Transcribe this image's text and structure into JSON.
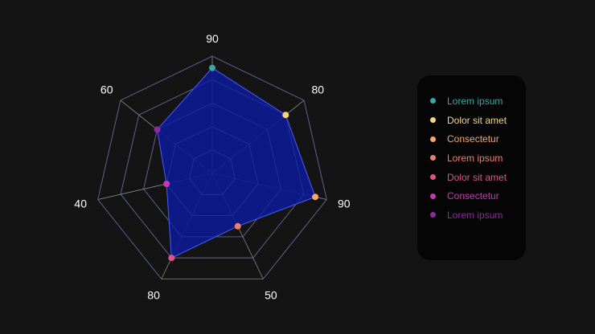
{
  "chart_data": {
    "type": "radar",
    "axes": [
      "90",
      "80",
      "90",
      "50",
      "80",
      "40",
      "60"
    ],
    "values": [
      90,
      80,
      90,
      50,
      80,
      40,
      60
    ],
    "rlim": [
      0,
      100
    ],
    "rings": 5,
    "grid": true,
    "fill_color": "#0d1a8f",
    "line_color": "#4a5cff",
    "grid_color": "#8a8a8a",
    "point_colors": [
      "#3aa6a6",
      "#f3d48b",
      "#f2a96b",
      "#f07e6e",
      "#e0528a",
      "#c43bb0",
      "#8c2aa0"
    ],
    "legend_position": "right",
    "legend": [
      {
        "label": "Lorem ipsum",
        "color": "#3aa6a6"
      },
      {
        "label": "Dolor sit amet",
        "color": "#f3d48b"
      },
      {
        "label": "Consectetur",
        "color": "#f2a96b"
      },
      {
        "label": "Lorem ipsum",
        "color": "#f07e6e"
      },
      {
        "label": "Dolor sit amet",
        "color": "#e0528a"
      },
      {
        "label": "Consectetur",
        "color": "#c43bb0"
      },
      {
        "label": "Lorem ipsum",
        "color": "#8c2aa0"
      }
    ]
  }
}
